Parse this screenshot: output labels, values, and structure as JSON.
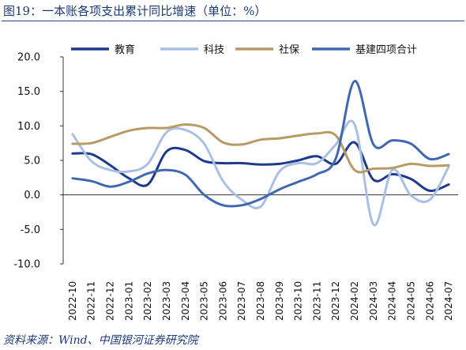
{
  "header": {
    "title": "图19：一本账各项支出累计同比增速（单位：%）"
  },
  "footer": {
    "source": "资料来源：Wind、中国银河证券研究院"
  },
  "chart_data": {
    "type": "line",
    "categories": [
      "2022-10",
      "2022-11",
      "2022-12",
      "2023-01",
      "2023-02",
      "2023-03",
      "2023-04",
      "2023-05",
      "2023-06",
      "2023-07",
      "2023-08",
      "2023-09",
      "2023-10",
      "2023-11",
      "2023-12",
      "2024-02",
      "2024-03",
      "2024-04",
      "2024-05",
      "2024-06",
      "2024-07"
    ],
    "ylim": [
      -10,
      20
    ],
    "yticks": [
      20,
      15,
      10,
      5,
      0,
      -5,
      -10
    ],
    "ytick_labels": [
      "20.0",
      "15.0",
      "10.0",
      "5.0",
      "0.0",
      "-5.0",
      "-10.0"
    ],
    "grid": false,
    "legend_position": "top",
    "series": [
      {
        "name": "教育",
        "color": "#1f3a8a",
        "values": [
          6.0,
          5.9,
          4.3,
          2.4,
          1.5,
          6.3,
          6.5,
          4.9,
          4.6,
          4.6,
          4.4,
          4.5,
          5.0,
          5.6,
          4.5,
          7.6,
          2.2,
          3.0,
          2.3,
          0.6,
          1.5
        ]
      },
      {
        "name": "科技",
        "color": "#a9bfe6",
        "values": [
          8.8,
          4.9,
          3.6,
          3.4,
          4.5,
          9.1,
          9.4,
          7.4,
          2.0,
          -0.7,
          -1.7,
          3.4,
          4.6,
          4.6,
          7.3,
          10.2,
          -4.3,
          3.6,
          -0.1,
          -0.7,
          4.1
        ]
      },
      {
        "name": "社保",
        "color": "#b89a65",
        "values": [
          7.4,
          7.5,
          8.4,
          9.3,
          9.7,
          9.7,
          10.2,
          9.7,
          7.6,
          7.3,
          8.0,
          8.2,
          8.6,
          8.9,
          8.6,
          3.6,
          3.8,
          3.9,
          4.5,
          4.2,
          4.3
        ]
      },
      {
        "name": "基建四项合计",
        "color": "#4068b0",
        "values": [
          2.4,
          2.0,
          1.2,
          1.9,
          3.1,
          3.6,
          2.9,
          0.0,
          -1.5,
          -1.5,
          -0.6,
          0.8,
          1.9,
          3.0,
          5.3,
          16.5,
          7.3,
          7.9,
          7.4,
          5.2,
          5.9
        ]
      }
    ]
  }
}
